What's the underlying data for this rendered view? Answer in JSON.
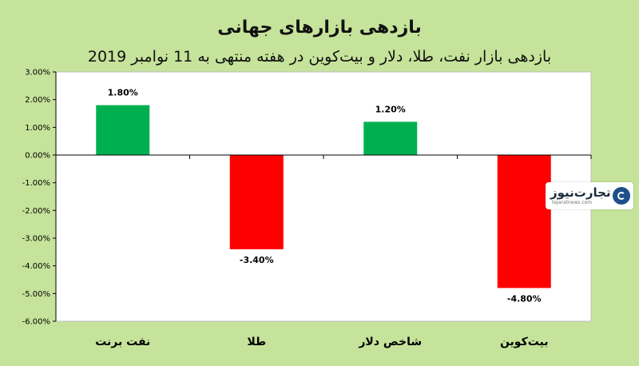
{
  "colors": {
    "background": "#c5e39a",
    "plot_background": "#ffffff",
    "positive": "#00b050",
    "negative": "#ff0000"
  },
  "chart_data": {
    "type": "bar",
    "title": "بازدهی بازارهای جهانی",
    "subtitle": "بازدهی بازار نفت، طلا، دلار و بیت‌کوین در هفته منتهی به 11 نوامبر 2019",
    "categories": [
      "نفت برنت",
      "طلا",
      "شاخص دلار",
      "بیت‌کوین"
    ],
    "values": [
      1.8,
      -3.4,
      1.2,
      -4.8
    ],
    "value_labels": [
      "1.80%",
      "-3.40%",
      "1.20%",
      "-4.80%"
    ],
    "ylim": [
      -6,
      3
    ],
    "yticks": [
      3,
      2,
      1,
      0,
      -1,
      -2,
      -3,
      -4,
      -5,
      -6
    ],
    "ytick_labels": [
      "3.00%",
      "2.00%",
      "1.00%",
      "0.00%",
      "-1.00%",
      "-2.00%",
      "-3.00%",
      "-4.00%",
      "-5.00%",
      "-6.00%"
    ],
    "grid": false,
    "legend": "none"
  },
  "logo": {
    "name": "تجارت‌نیوز",
    "url_text": "tejaratnews.com",
    "icon": "tejaratnews-logo-icon"
  }
}
